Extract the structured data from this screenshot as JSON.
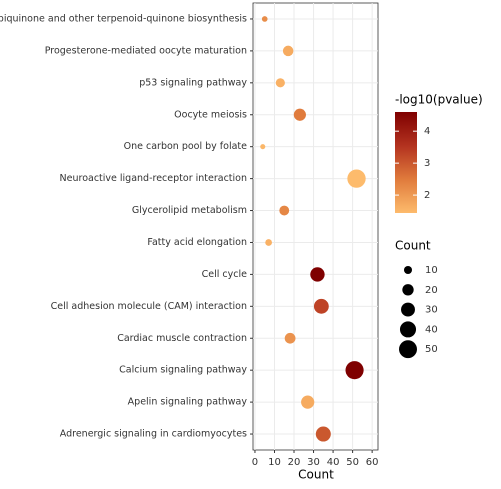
{
  "chart_data": {
    "type": "dot",
    "x_label": "Count",
    "categories": [
      "Ubiquinone and other terpenoid-quinone biosynthesis",
      "Progesterone-mediated oocyte maturation",
      "p53 signaling pathway",
      "Oocyte meiosis",
      "One carbon pool by folate",
      "Neuroactive ligand-receptor interaction",
      "Glycerolipid metabolism",
      "Fatty acid elongation",
      "Cell cycle",
      "Cell adhesion molecule (CAM) interaction",
      "Cardiac muscle contraction",
      "Calcium signaling pathway",
      "Apelin signaling pathway",
      "Adrenergic signaling in cardiomyocytes"
    ],
    "counts": [
      5,
      17,
      13,
      23,
      4,
      52,
      15,
      7,
      32,
      34,
      18,
      51,
      27,
      35
    ],
    "neg_log10_p": [
      2.2,
      1.7,
      1.6,
      2.5,
      1.5,
      1.4,
      2.3,
      1.6,
      4.6,
      3.3,
      2.1,
      4.7,
      1.7,
      3.0
    ],
    "xlim": [
      -1,
      63
    ],
    "xticks": [
      0,
      10,
      20,
      30,
      40,
      50,
      60
    ],
    "grid": true,
    "color_legend": {
      "title": "-log10(pvalue)",
      "lim": [
        1.44,
        4.6
      ],
      "ticks": [
        2,
        3,
        4
      ],
      "colors": [
        "#fdbb6c",
        "#e07b3c",
        "#b3321f",
        "#7f0000"
      ]
    },
    "size_legend": {
      "title": "Count",
      "values": [
        10,
        20,
        30,
        40,
        50
      ]
    }
  }
}
